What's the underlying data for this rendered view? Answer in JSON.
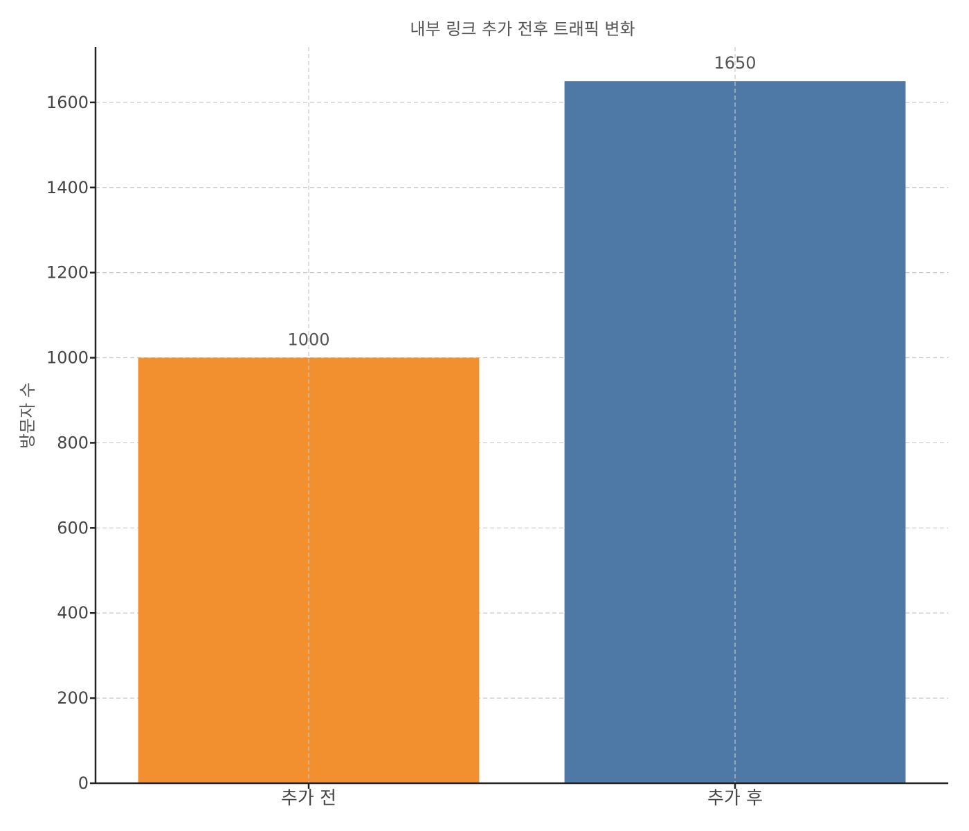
{
  "chart_data": {
    "type": "bar",
    "title": "내부 링크 추가 전후 트래픽 변화",
    "xlabel": "",
    "ylabel": "방문자 수",
    "categories": [
      "추가 전",
      "추가 후"
    ],
    "values": [
      1000,
      1650
    ],
    "data_labels": [
      "1000",
      "1650"
    ],
    "colors": [
      "#f28f2e",
      "#4e78a5"
    ],
    "ylim": [
      0,
      1730
    ],
    "yticks": [
      0,
      200,
      400,
      600,
      800,
      1000,
      1200,
      1400,
      1600
    ],
    "grid": true
  }
}
